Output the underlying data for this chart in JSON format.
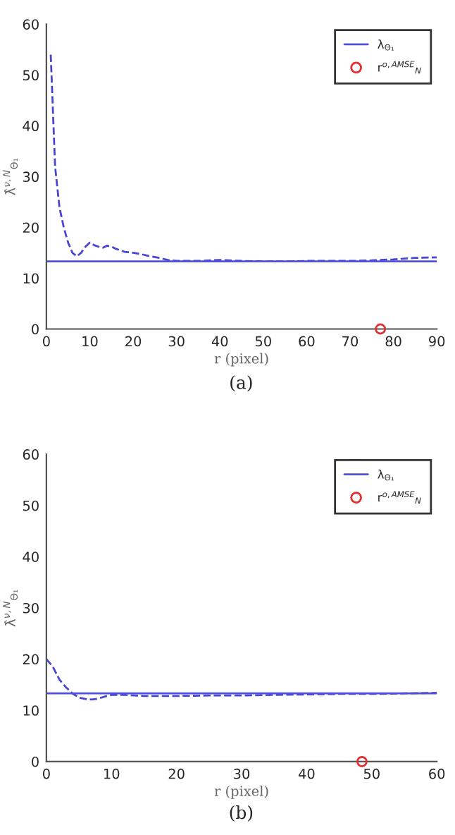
{
  "chart_data": [
    {
      "type": "line",
      "xlabel": "r (pixel)",
      "ylabel": "λ̂$^{ν,N}$$_{Θ₁}$",
      "annotations": [
        "(a)"
      ],
      "xlim": [
        0,
        90
      ],
      "ylim": [
        0,
        60
      ],
      "xticks": [
        0,
        10,
        20,
        30,
        40,
        50,
        60,
        70,
        80,
        90
      ],
      "yticks": [
        0,
        10,
        20,
        30,
        40,
        50,
        60
      ],
      "grid": false,
      "legend": "top right",
      "series": [
        {
          "line_style": "dashed",
          "color": "#4646d2",
          "x": [
            1,
            2,
            3,
            4,
            5,
            6,
            7,
            8,
            9,
            10,
            11,
            12,
            13,
            14,
            15,
            16,
            17,
            18,
            20,
            22,
            24,
            26,
            28,
            30,
            35,
            40,
            45,
            50,
            55,
            60,
            65,
            70,
            75,
            80,
            85,
            90
          ],
          "values": [
            54,
            32,
            24,
            20,
            17,
            15,
            14.3,
            15,
            16.2,
            17,
            16.5,
            16.2,
            16,
            16.4,
            16.2,
            15.8,
            15.5,
            15.2,
            15,
            14.7,
            14.3,
            14,
            13.6,
            13.4,
            13.4,
            13.6,
            13.4,
            13.3,
            13.3,
            13.4,
            13.4,
            13.4,
            13.5,
            13.7,
            14,
            14.1
          ]
        },
        {
          "line_style": "solid",
          "name": "λ$_{Θ₁}$",
          "color": "#5050d8",
          "x": [
            0,
            90
          ],
          "values": [
            13.3,
            13.3
          ]
        },
        {
          "type": "scatter",
          "marker": "circle",
          "name": "r$^{o,AMSE}$$_{N}$",
          "color": "#e03030",
          "x": [
            77
          ],
          "values": [
            0
          ]
        }
      ]
    },
    {
      "type": "line",
      "xlabel": "r (pixel)",
      "ylabel": "λ̂$^{ν,N}$$_{Θ₁}$",
      "annotations": [
        "(b)"
      ],
      "xlim": [
        0,
        60
      ],
      "ylim": [
        0,
        60
      ],
      "xticks": [
        0,
        10,
        20,
        30,
        40,
        50,
        60
      ],
      "yticks": [
        0,
        10,
        20,
        30,
        40,
        50,
        60
      ],
      "grid": false,
      "legend": "top right",
      "series": [
        {
          "line_style": "dashed",
          "color": "#4646d2",
          "x": [
            0,
            1,
            2,
            3,
            4,
            5,
            6,
            7,
            8,
            9,
            10,
            12,
            15,
            20,
            25,
            30,
            35,
            40,
            45,
            50,
            55,
            60
          ],
          "values": [
            20,
            18.5,
            16,
            14.5,
            13.3,
            12.5,
            12.2,
            12.1,
            12.3,
            12.7,
            13,
            13,
            12.8,
            12.8,
            12.9,
            12.9,
            13,
            13.1,
            13.2,
            13.2,
            13.3,
            13.4
          ]
        },
        {
          "line_style": "solid",
          "name": "λ$_{Θ₁}$",
          "color": "#5050d8",
          "x": [
            0,
            60
          ],
          "values": [
            13.3,
            13.3
          ]
        },
        {
          "type": "scatter",
          "marker": "circle",
          "name": "r$^{o,AMSE}$$_{N}$",
          "color": "#e03030",
          "x": [
            48.5
          ],
          "values": [
            0
          ]
        }
      ]
    }
  ]
}
